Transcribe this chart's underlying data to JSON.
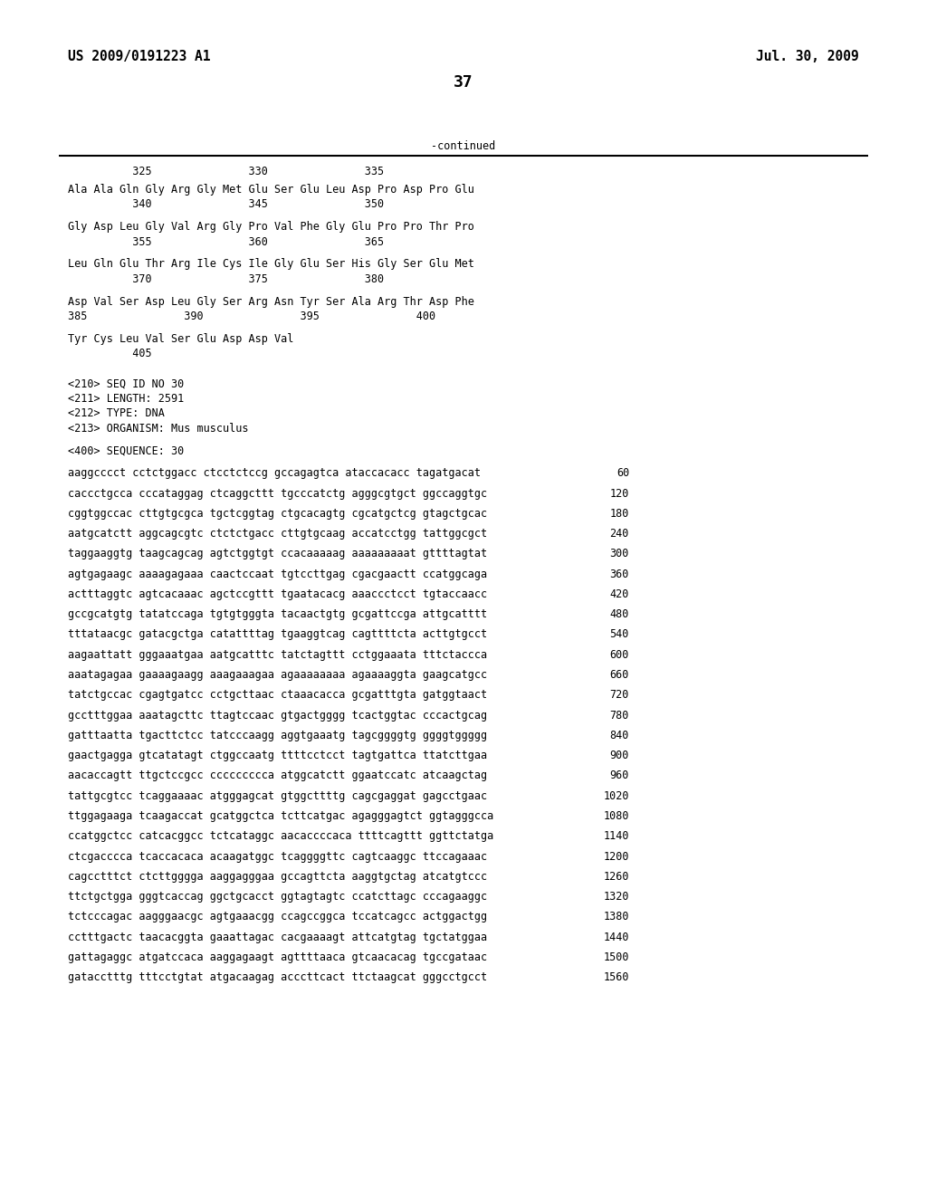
{
  "header_left": "US 2009/0191223 A1",
  "header_right": "Jul. 30, 2009",
  "page_number": "37",
  "continued_label": "-continued",
  "background_color": "#ffffff",
  "text_color": "#000000",
  "aa_section": [
    {
      "text": "          325               330               335",
      "type": "ruler"
    },
    {
      "text": "",
      "type": "blank"
    },
    {
      "text": "Ala Ala Gln Gly Arg Gly Met Glu Ser Glu Leu Asp Pro Asp Pro Glu",
      "type": "aa"
    },
    {
      "text": "          340               345               350",
      "type": "ruler"
    },
    {
      "text": "",
      "type": "blank"
    },
    {
      "text": "Gly Asp Leu Gly Val Arg Gly Pro Val Phe Gly Glu Pro Pro Thr Pro",
      "type": "aa"
    },
    {
      "text": "          355               360               365",
      "type": "ruler"
    },
    {
      "text": "",
      "type": "blank"
    },
    {
      "text": "Leu Gln Glu Thr Arg Ile Cys Ile Gly Glu Ser His Gly Ser Glu Met",
      "type": "aa"
    },
    {
      "text": "          370               375               380",
      "type": "ruler"
    },
    {
      "text": "",
      "type": "blank"
    },
    {
      "text": "Asp Val Ser Asp Leu Gly Ser Arg Asn Tyr Ser Ala Arg Thr Asp Phe",
      "type": "aa"
    },
    {
      "text": "385               390               395               400",
      "type": "ruler"
    },
    {
      "text": "",
      "type": "blank"
    },
    {
      "text": "Tyr Cys Leu Val Ser Glu Asp Asp Val",
      "type": "aa"
    },
    {
      "text": "          405",
      "type": "ruler"
    }
  ],
  "meta_section": [
    "<210> SEQ ID NO 30",
    "<211> LENGTH: 2591",
    "<212> TYPE: DNA",
    "<213> ORGANISM: Mus musculus"
  ],
  "seq_label": "<400> SEQUENCE: 30",
  "dna_lines": [
    [
      "aaggcccct cctctggacc ctcctctccg gccagagtca ataccacacc tagatgacat",
      "60"
    ],
    [
      "caccctgcca cccataggag ctcaggcttt tgcccatctg agggcgtgct ggccaggtgc",
      "120"
    ],
    [
      "cggtggccac cttgtgcgca tgctcggtag ctgcacagtg cgcatgctcg gtagctgcac",
      "180"
    ],
    [
      "aatgcatctt aggcagcgtc ctctctgacc cttgtgcaag accatcctgg tattggcgct",
      "240"
    ],
    [
      "taggaaggtg taagcagcag agtctggtgt ccacaaaaag aaaaaaaaat gttttagtat",
      "300"
    ],
    [
      "agtgagaagc aaaagagaaa caactccaat tgtccttgag cgacgaactt ccatggcaga",
      "360"
    ],
    [
      "actttaggtc agtcacaaac agctccgttt tgaatacacg aaaccctcct tgtaccaacc",
      "420"
    ],
    [
      "gccgcatgtg tatatccaga tgtgtgggta tacaactgtg gcgattccga attgcatttt",
      "480"
    ],
    [
      "tttataacgc gatacgctga catattttag tgaaggtcag cagttttcta acttgtgcct",
      "540"
    ],
    [
      "aagaattatt gggaaatgaa aatgcatttc tatctagttt cctggaaata tttctaccca",
      "600"
    ],
    [
      "aaatagagaa gaaaagaagg aaagaaagaa agaaaaaaaa agaaaaggta gaagcatgcc",
      "660"
    ],
    [
      "tatctgccac cgagtgatcc cctgcttaac ctaaacacca gcgatttgta gatggtaact",
      "720"
    ],
    [
      "gcctttggaa aaatagcttc ttagtccaac gtgactgggg tcactggtac cccactgcag",
      "780"
    ],
    [
      "gatttaatta tgacttctcc tatcccaagg aggtgaaatg tagcggggtg ggggtggggg",
      "840"
    ],
    [
      "gaactgagga gtcatatagt ctggccaatg ttttcctcct tagtgattca ttatcttgaa",
      "900"
    ],
    [
      "aacaccagtt ttgctccgcc ccccccccca atggcatctt ggaatccatc atcaagctag",
      "960"
    ],
    [
      "tattgcgtcc tcaggaaaac atgggagcat gtggcttttg cagcgaggat gagcctgaac",
      "1020"
    ],
    [
      "ttggagaaga tcaagaccat gcatggctca tcttcatgac agagggagtct ggtagggcca",
      "1080"
    ],
    [
      "ccatggctcc catcacggcc tctcataggc aacaccccaca ttttcagttt ggttctatga",
      "1140"
    ],
    [
      "ctcgacccca tcaccacaca acaagatggc tcaggggttc cagtcaaggc ttccagaaac",
      "1200"
    ],
    [
      "cagcctttct ctcttgggga aaggagggaa gccagttcta aaggtgctag atcatgtccc",
      "1260"
    ],
    [
      "ttctgctgga gggtcaccag ggctgcacct ggtagtagtc ccatcttagc cccagaaggc",
      "1320"
    ],
    [
      "tctcccagac aagggaacgc agtgaaacgg ccagccggca tccatcagcc actggactgg",
      "1380"
    ],
    [
      "cctttgactc taacacggta gaaattagac cacgaaaagt attcatgtag tgctatggaa",
      "1440"
    ],
    [
      "gattagaggc atgatccaca aaggagaagt agttttaaca gtcaacacag tgccgataac",
      "1500"
    ],
    [
      "gatacctttg tttcctgtat atgacaagag acccttcact ttctaagcat gggcctgcct",
      "1560"
    ]
  ]
}
